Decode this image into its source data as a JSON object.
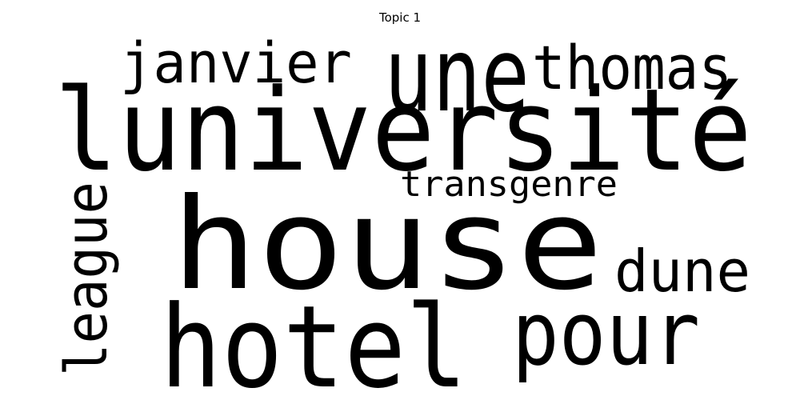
{
  "title": "Topic 1",
  "words": [
    {
      "text": "house",
      "color": "#e8e21b"
    },
    {
      "text": "luniversité",
      "color": "#bddf26"
    },
    {
      "text": "hotel",
      "color": "#482878"
    },
    {
      "text": "une",
      "color": "#471063"
    },
    {
      "text": "thomas",
      "color": "#33638d"
    },
    {
      "text": "janvier",
      "color": "#25a48a"
    },
    {
      "text": "pour",
      "color": "#21918c"
    },
    {
      "text": "dune",
      "color": "#35b779"
    },
    {
      "text": "league",
      "color": "#a5db36"
    },
    {
      "text": "transgenre",
      "color": "#b0dd2f"
    }
  ]
}
